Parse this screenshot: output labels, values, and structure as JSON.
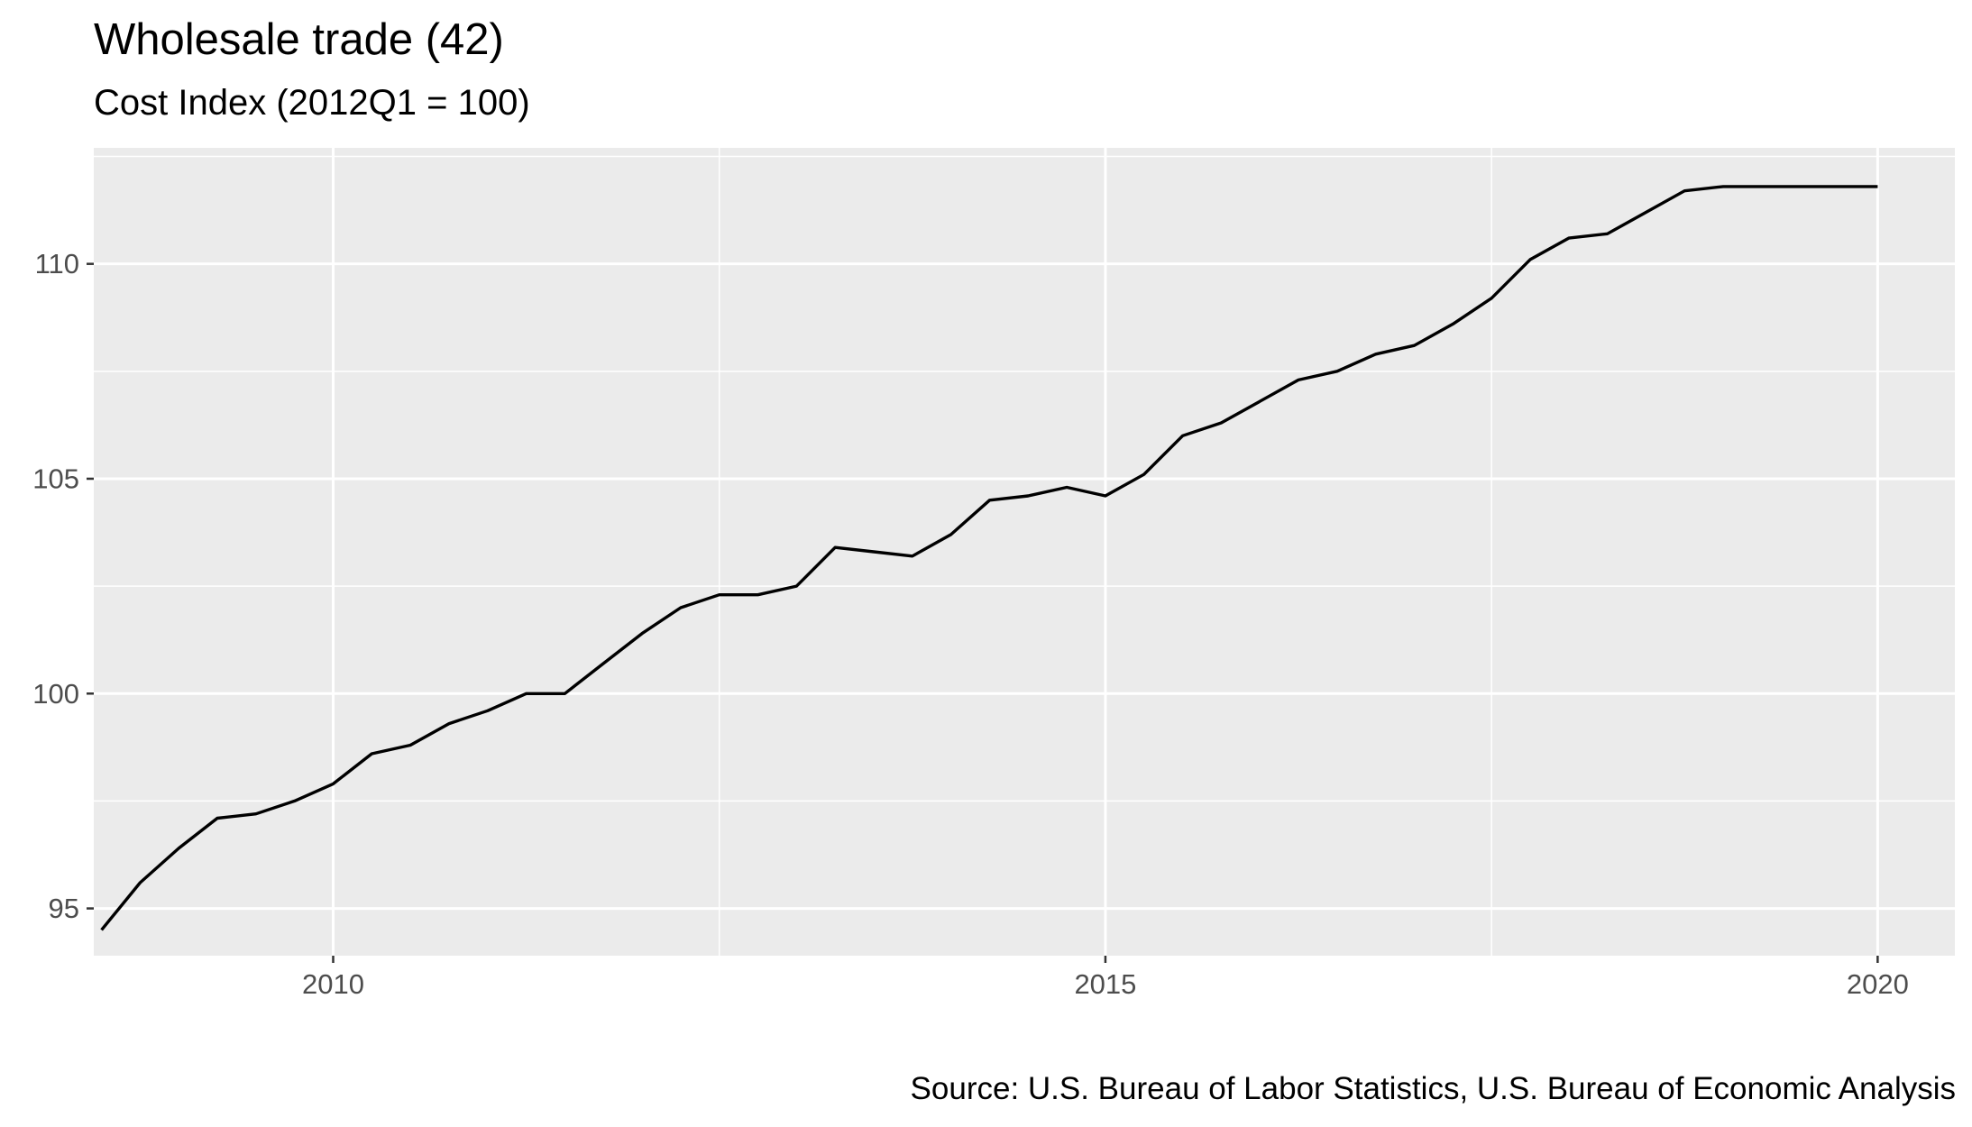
{
  "chart_data": {
    "type": "line",
    "title": "Wholesale trade (42)",
    "subtitle": "Cost Index (2012Q1 = 100)",
    "caption": "Source: U.S. Bureau of Labor Statistics, U.S. Bureau of Economic Analysis",
    "xlabel": "",
    "ylabel": "",
    "xlim": [
      2008.45,
      2020.5
    ],
    "ylim": [
      93.9,
      112.7
    ],
    "x_ticks": [
      2010,
      2015,
      2020
    ],
    "x_tick_labels": [
      "2010",
      "2015",
      "2020"
    ],
    "y_ticks": [
      95,
      100,
      105,
      110
    ],
    "y_tick_labels": [
      "95",
      "100",
      "105",
      "110"
    ],
    "grid": true,
    "legend": "none",
    "colors": {
      "panel": "#ebebeb",
      "grid": "#ffffff",
      "line": "#000000",
      "axis_text": "#4d4d4d"
    },
    "series": [
      {
        "x": [
          2008.5,
          2008.75,
          2009.0,
          2009.25,
          2009.5,
          2009.75,
          2010.0,
          2010.25,
          2010.5,
          2010.75,
          2011.0,
          2011.25,
          2011.5,
          2011.75,
          2012.0,
          2012.25,
          2012.5,
          2012.75,
          2013.0,
          2013.25,
          2013.5,
          2013.75,
          2014.0,
          2014.25,
          2014.5,
          2014.75,
          2015.0,
          2015.25,
          2015.5,
          2015.75,
          2016.0,
          2016.25,
          2016.5,
          2016.75,
          2017.0,
          2017.25,
          2017.5,
          2017.75,
          2018.0,
          2018.25,
          2018.5,
          2018.75,
          2019.0,
          2019.25,
          2019.5,
          2019.75,
          2020.0
        ],
        "values": [
          94.5,
          95.6,
          96.4,
          97.1,
          97.2,
          97.5,
          97.9,
          98.6,
          98.8,
          99.3,
          99.6,
          100.0,
          100.0,
          100.7,
          101.4,
          102.0,
          102.3,
          102.3,
          102.5,
          103.4,
          103.3,
          103.2,
          103.7,
          104.5,
          104.6,
          104.8,
          104.6,
          105.1,
          106.0,
          106.3,
          106.8,
          107.3,
          107.5,
          107.9,
          108.1,
          108.6,
          109.2,
          110.1,
          110.6,
          110.7,
          111.2,
          111.7,
          111.8,
          111.8,
          111.8,
          111.8,
          111.8
        ]
      }
    ]
  }
}
